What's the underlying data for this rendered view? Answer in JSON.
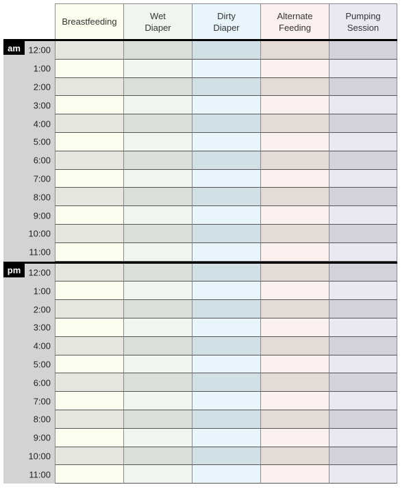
{
  "columns": [
    {
      "label": "Breastfeeding",
      "light": "#fefef0",
      "dark": "#e6e6de"
    },
    {
      "label": "Wet\nDiaper",
      "light": "#f0f5ef",
      "dark": "#d8e0d8"
    },
    {
      "label": "Dirty\nDiaper",
      "light": "#e8f5fc",
      "dark": "#d0e0e6"
    },
    {
      "label": "Alternate\nFeeding",
      "light": "#fcf0ee",
      "dark": "#e4dad6"
    },
    {
      "label": "Pumping\nSession",
      "light": "#ebe8f3",
      "dark": "#d2d2dc"
    }
  ],
  "periods": [
    {
      "label": "am",
      "times": [
        "12:00",
        "1:00",
        "2:00",
        "3:00",
        "4:00",
        "5:00",
        "6:00",
        "7:00",
        "8:00",
        "9:00",
        "10:00",
        "11:00"
      ]
    },
    {
      "label": "pm",
      "times": [
        "12:00",
        "1:00",
        "2:00",
        "3:00",
        "4:00",
        "5:00",
        "6:00",
        "7:00",
        "8:00",
        "9:00",
        "10:00",
        "11:00"
      ]
    }
  ]
}
